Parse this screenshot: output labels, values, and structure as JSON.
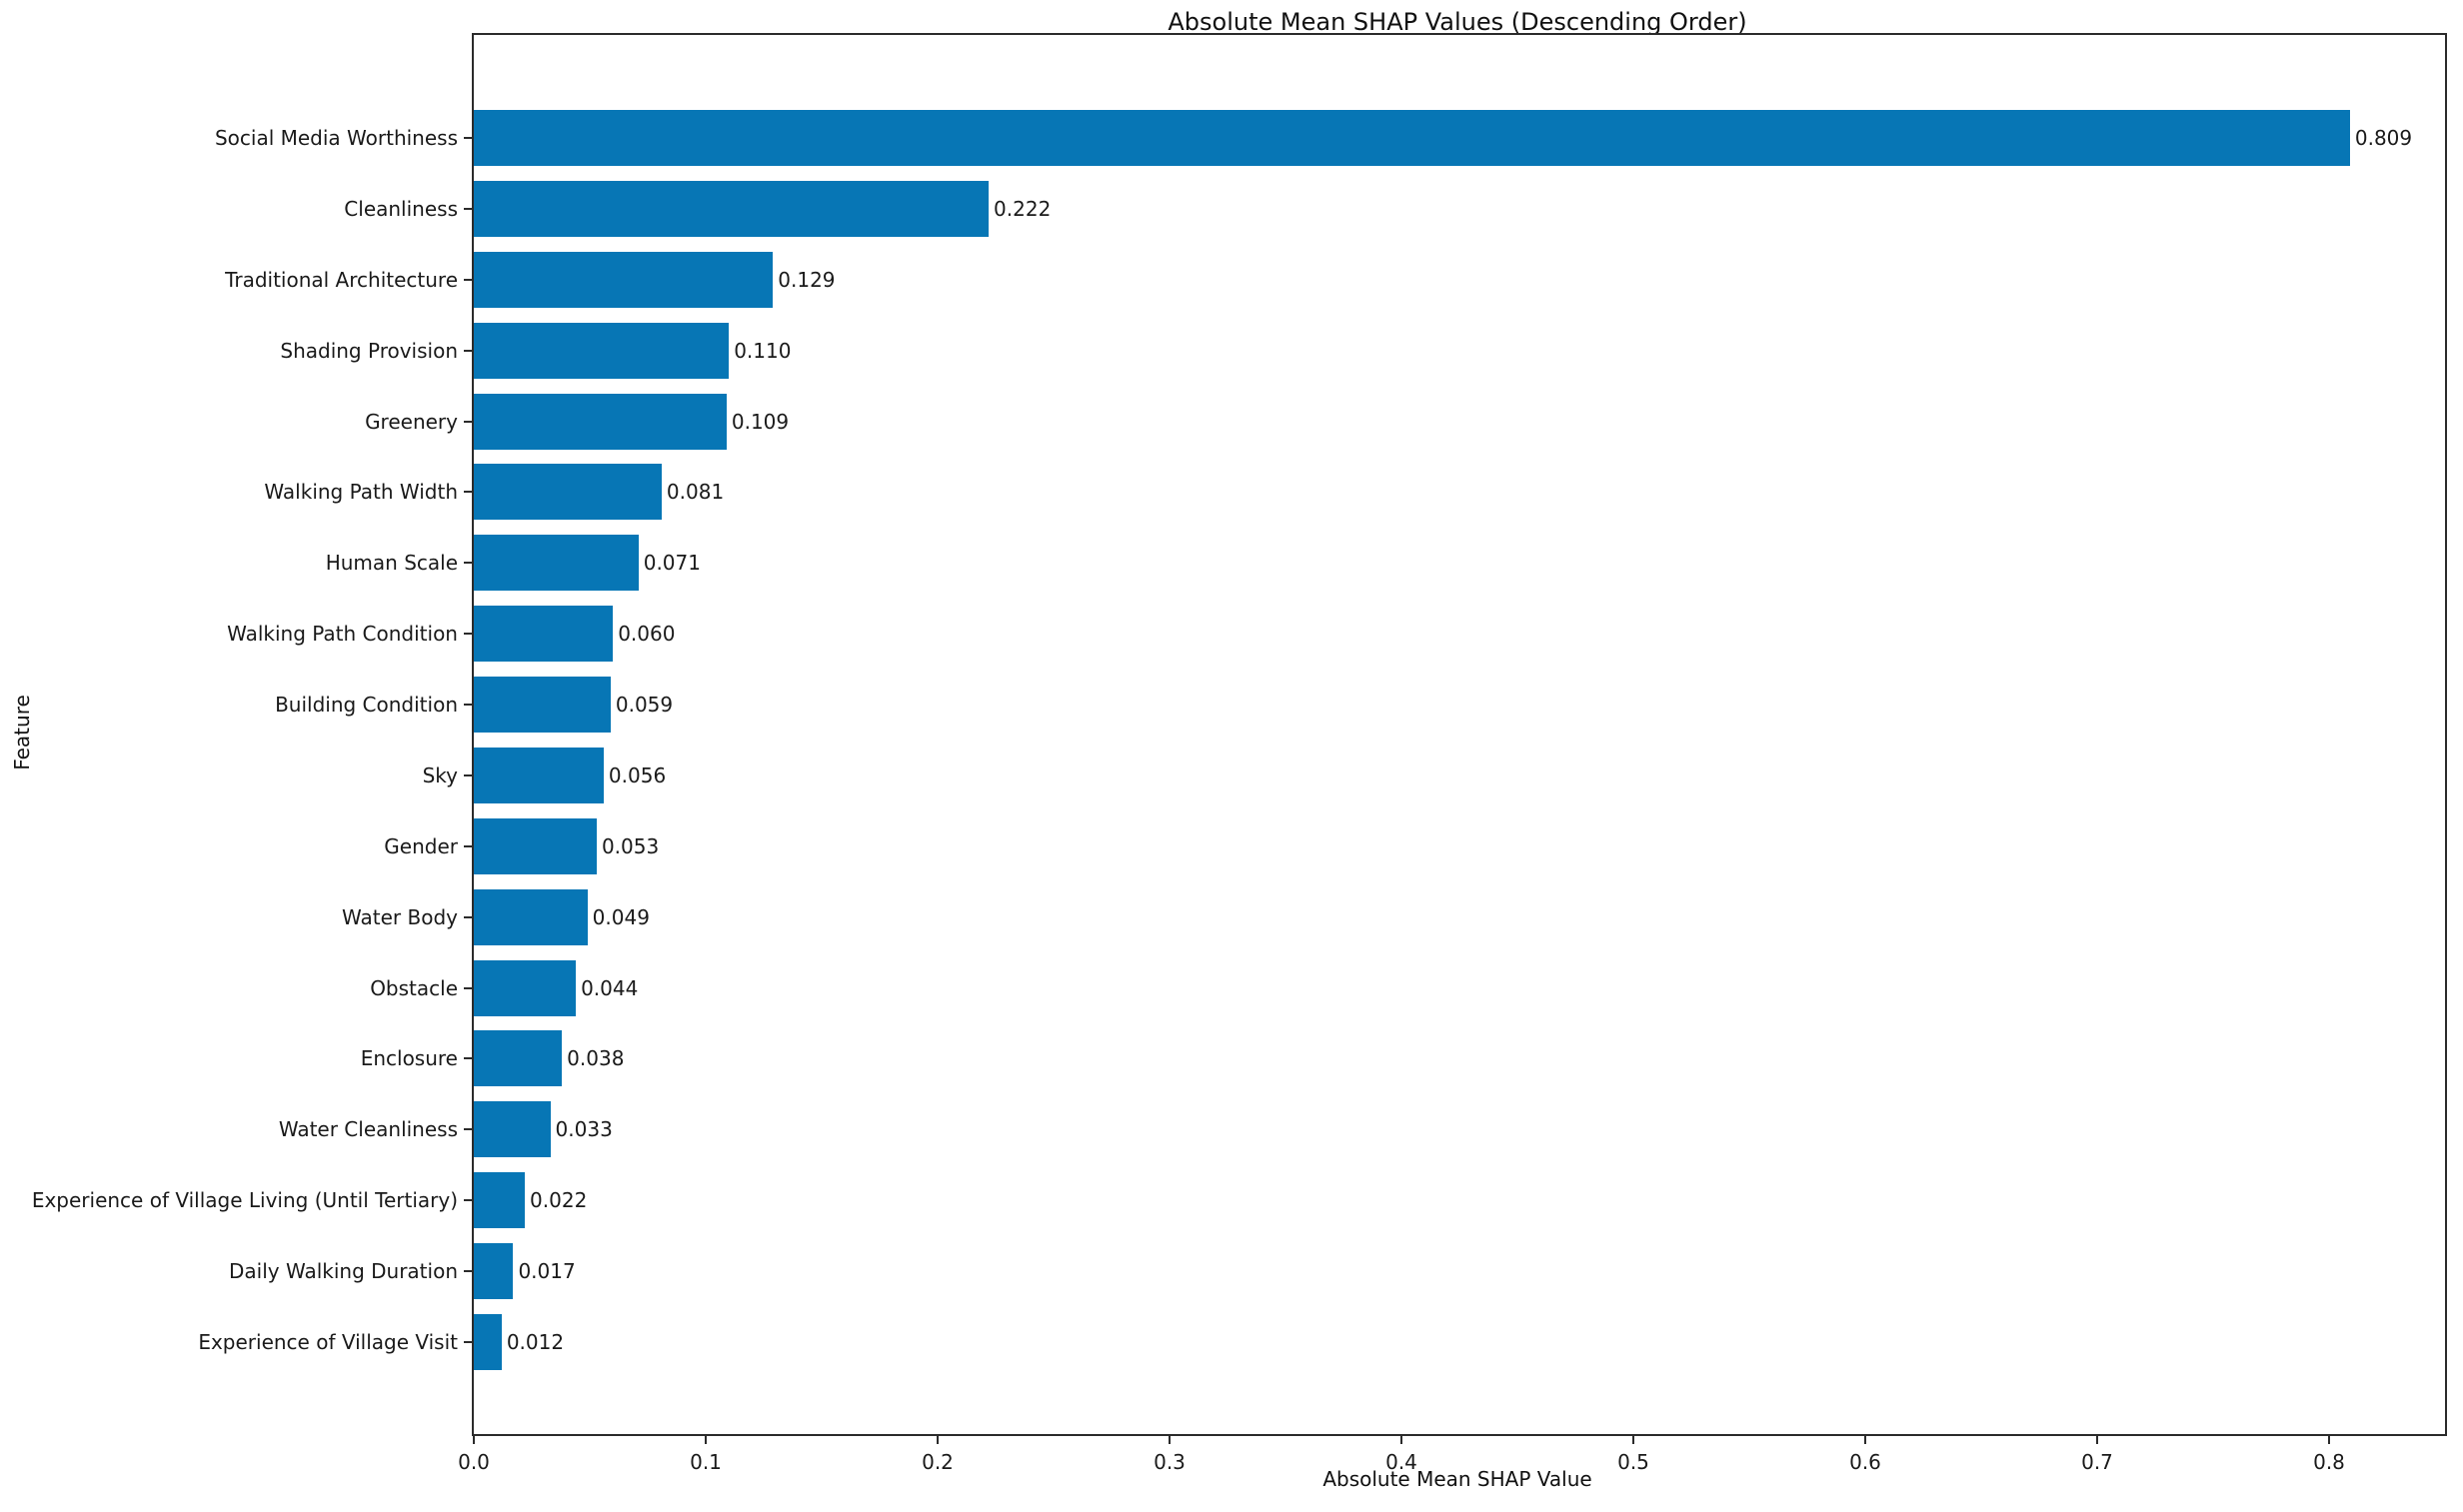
{
  "chart_data": {
    "type": "bar",
    "orientation": "horizontal",
    "title": "Absolute Mean SHAP Values (Descending Order)",
    "xlabel": "Absolute Mean SHAP Value",
    "ylabel": "Feature",
    "categories": [
      "Social Media Worthiness",
      "Cleanliness",
      "Traditional Architecture",
      "Shading Provision",
      "Greenery",
      "Walking Path Width",
      "Human Scale",
      "Walking Path Condition",
      "Building Condition",
      "Sky",
      "Gender",
      "Water Body",
      "Obstacle",
      "Enclosure",
      "Water Cleanliness",
      "Experience of Village Living (Until Tertiary)",
      "Daily Walking Duration",
      "Experience of Village Visit"
    ],
    "values": [
      0.809,
      0.222,
      0.129,
      0.11,
      0.109,
      0.081,
      0.071,
      0.06,
      0.059,
      0.056,
      0.053,
      0.049,
      0.044,
      0.038,
      0.033,
      0.022,
      0.017,
      0.012
    ],
    "value_labels": [
      "0.809",
      "0.222",
      "0.129",
      "0.110",
      "0.109",
      "0.081",
      "0.071",
      "0.060",
      "0.059",
      "0.056",
      "0.053",
      "0.049",
      "0.044",
      "0.038",
      "0.033",
      "0.022",
      "0.017",
      "0.012"
    ],
    "xlim": [
      0,
      0.85
    ],
    "x_ticks": [
      "0.0",
      "0.1",
      "0.2",
      "0.3",
      "0.4",
      "0.5",
      "0.6",
      "0.7",
      "0.8"
    ],
    "bar_color": "#0776b5",
    "grid": false,
    "legend_position": "none"
  }
}
